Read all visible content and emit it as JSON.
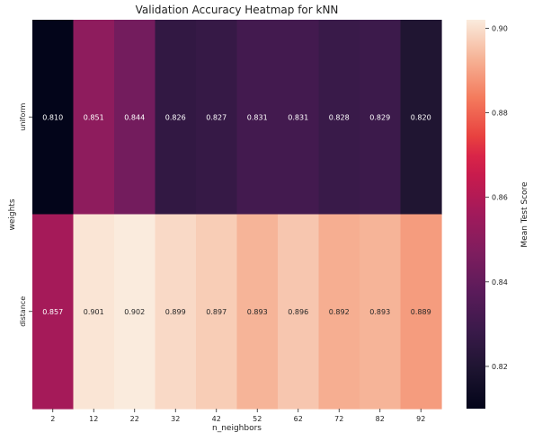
{
  "chart_data": {
    "type": "heatmap",
    "title": "Validation Accuracy Heatmap for kNN",
    "xlabel": "n_neighbors",
    "ylabel": "weights",
    "x": [
      "2",
      "12",
      "22",
      "32",
      "42",
      "52",
      "62",
      "72",
      "82",
      "92"
    ],
    "y": [
      "uniform",
      "distance"
    ],
    "values": [
      [
        0.81,
        0.851,
        0.844,
        0.826,
        0.827,
        0.831,
        0.831,
        0.828,
        0.829,
        0.82
      ],
      [
        0.857,
        0.901,
        0.902,
        0.899,
        0.897,
        0.893,
        0.896,
        0.892,
        0.893,
        0.889
      ]
    ],
    "annotation_format": "0.000",
    "colorbar": {
      "label": "Mean Test Score",
      "range": [
        0.81,
        0.902
      ],
      "ticks": [
        "0.82",
        "0.84",
        "0.86",
        "0.88",
        "0.90"
      ],
      "colormap": "rocket",
      "stops": [
        {
          "v": 0.0,
          "c": "#03051a"
        },
        {
          "v": 0.1,
          "c": "#1d1430"
        },
        {
          "v": 0.2,
          "c": "#3a1a4a"
        },
        {
          "v": 0.3,
          "c": "#5a1b5a"
        },
        {
          "v": 0.4,
          "c": "#7e1d5e"
        },
        {
          "v": 0.5,
          "c": "#a11a5b"
        },
        {
          "v": 0.6,
          "c": "#c81b4d"
        },
        {
          "v": 0.65,
          "c": "#d92548"
        },
        {
          "v": 0.7,
          "c": "#e8413f"
        },
        {
          "v": 0.8,
          "c": "#f47b5d"
        },
        {
          "v": 0.9,
          "c": "#f6b396"
        },
        {
          "v": 1.0,
          "c": "#faebdd"
        }
      ]
    }
  }
}
